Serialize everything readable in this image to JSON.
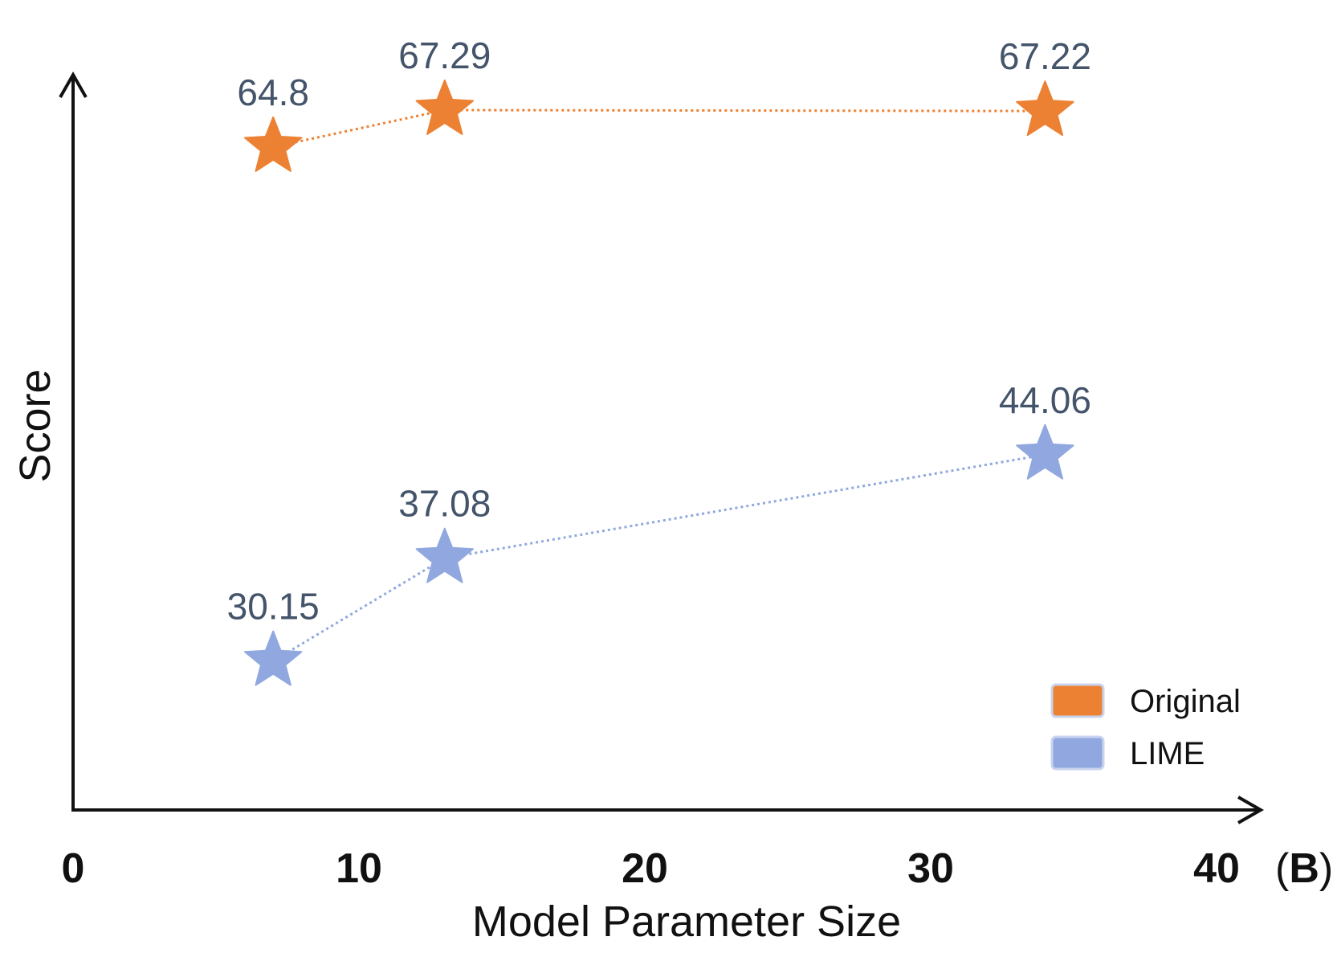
{
  "chart_data": {
    "type": "line",
    "xlabel": "Model Parameter Size",
    "ylabel": "Score",
    "x_unit": "(B)",
    "xlim": [
      0,
      40
    ],
    "x_ticks": [
      "0",
      "10",
      "20",
      "30",
      "40"
    ],
    "ylim": [
      20,
      72
    ],
    "grid": false,
    "legend_position": "bottom-right",
    "marker": "star",
    "series": [
      {
        "name": "Original",
        "color": "#ed8133",
        "x": [
          7,
          13,
          34
        ],
        "values": [
          64.8,
          67.29,
          67.22
        ],
        "labels": [
          "64.8",
          "67.29",
          "67.22"
        ]
      },
      {
        "name": "LIME",
        "color": "#90a8df",
        "x": [
          7,
          13,
          34
        ],
        "values": [
          30.15,
          37.08,
          44.06
        ],
        "labels": [
          "30.15",
          "37.08",
          "44.06"
        ]
      }
    ]
  }
}
